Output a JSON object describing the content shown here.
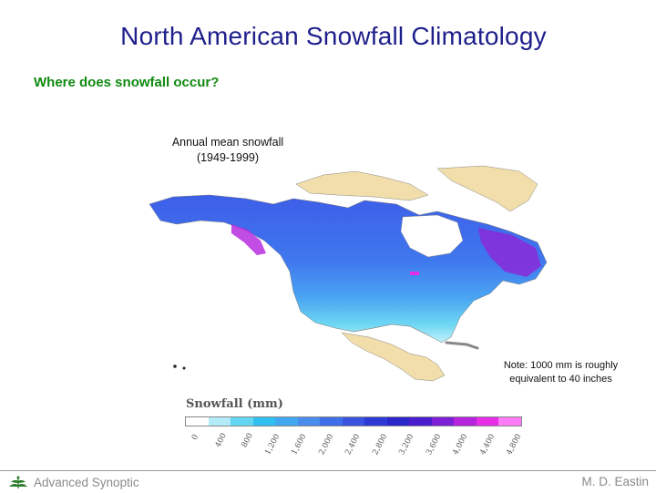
{
  "slide": {
    "title": "North American Snowfall Climatology",
    "subtitle": "Where does snowfall occur?"
  },
  "figure": {
    "caption_line1": "Annual mean snowfall",
    "caption_line2": "(1949-1999)",
    "note_line1": "Note: 1000 mm is roughly",
    "note_line2": "equivalent to 40 inches",
    "legend": {
      "title": "Snowfall (mm)",
      "ticks": [
        "0",
        "400",
        "800",
        "1,200",
        "1,600",
        "2,000",
        "2,400",
        "2,800",
        "3,200",
        "3,600",
        "4,000",
        "4,400",
        "4,800"
      ],
      "colors": [
        "#ffffff",
        "#b3ecf8",
        "#62d6f2",
        "#2fc0ef",
        "#41a7f0",
        "#4a8bee",
        "#3f6fe8",
        "#3953e0",
        "#2f3ad6",
        "#2b26c9",
        "#4a1ed0",
        "#7e1fd8",
        "#b524dc",
        "#e52ee6",
        "#ff7af7"
      ]
    }
  },
  "footer": {
    "left": "Advanced Synoptic",
    "right": "M. D. Eastin"
  }
}
